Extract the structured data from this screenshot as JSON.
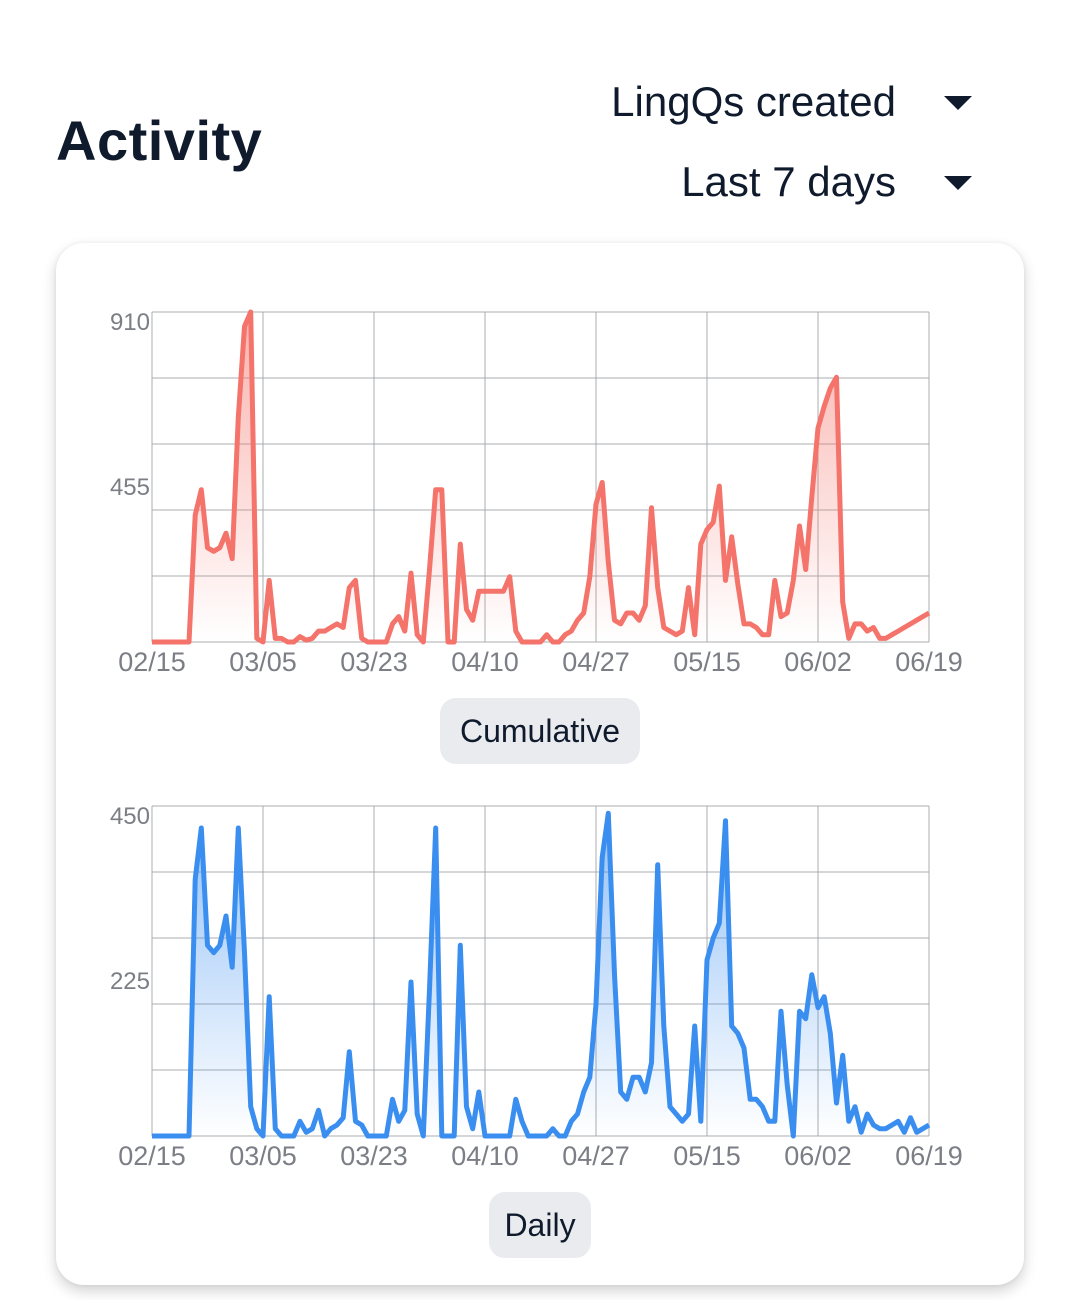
{
  "header": {
    "title": "Activity",
    "metric_dropdown": "LingQs created",
    "range_dropdown": "Last 7 days"
  },
  "buttons": {
    "cumulative": "Cumulative",
    "daily": "Daily"
  },
  "colors": {
    "cumulative_line": "#f4736a",
    "daily_line": "#3a8ef0",
    "grid": "#a9acb0"
  },
  "chart_data": [
    {
      "type": "area",
      "name": "cumulative-chart",
      "title": "",
      "x_tick_labels": [
        "02/15",
        "03/05",
        "03/23",
        "04/10",
        "04/27",
        "05/15",
        "06/02",
        "06/19"
      ],
      "y_tick_labels": [
        "910",
        "455"
      ],
      "ylim": [
        0,
        910
      ],
      "grid": true,
      "values": [
        0,
        0,
        0,
        0,
        0,
        0,
        0,
        350,
        420,
        260,
        250,
        260,
        300,
        230,
        620,
        870,
        910,
        10,
        0,
        170,
        10,
        10,
        0,
        0,
        15,
        5,
        10,
        30,
        30,
        40,
        50,
        40,
        150,
        170,
        10,
        0,
        0,
        0,
        0,
        50,
        70,
        30,
        190,
        20,
        0,
        200,
        420,
        420,
        0,
        0,
        270,
        90,
        60,
        140,
        140,
        140,
        140,
        140,
        180,
        30,
        0,
        0,
        0,
        0,
        20,
        0,
        0,
        20,
        30,
        60,
        80,
        180,
        380,
        440,
        220,
        60,
        50,
        80,
        80,
        60,
        100,
        370,
        150,
        40,
        30,
        20,
        30,
        150,
        20,
        270,
        310,
        330,
        430,
        170,
        290,
        160,
        50,
        50,
        40,
        20,
        20,
        170,
        70,
        80,
        170,
        320,
        200,
        400,
        590,
        650,
        700,
        730,
        110,
        10,
        50,
        50,
        30,
        40,
        10,
        10,
        20,
        30,
        40,
        50,
        60,
        70,
        80
      ]
    },
    {
      "type": "area",
      "name": "daily-chart",
      "title": "",
      "x_tick_labels": [
        "02/15",
        "03/05",
        "03/23",
        "04/10",
        "04/27",
        "05/15",
        "06/02",
        "06/19"
      ],
      "y_tick_labels": [
        "450",
        "225"
      ],
      "ylim": [
        0,
        450
      ],
      "grid": true,
      "values": [
        0,
        0,
        0,
        0,
        0,
        0,
        0,
        350,
        420,
        260,
        250,
        260,
        300,
        230,
        420,
        250,
        40,
        10,
        0,
        190,
        10,
        0,
        0,
        0,
        20,
        5,
        10,
        35,
        0,
        10,
        15,
        25,
        115,
        20,
        15,
        0,
        0,
        0,
        0,
        50,
        20,
        35,
        210,
        30,
        0,
        200,
        420,
        0,
        0,
        0,
        260,
        40,
        10,
        60,
        0,
        0,
        0,
        0,
        0,
        50,
        20,
        0,
        0,
        0,
        0,
        10,
        0,
        0,
        20,
        30,
        60,
        80,
        180,
        380,
        440,
        220,
        60,
        50,
        80,
        80,
        60,
        100,
        370,
        150,
        40,
        30,
        20,
        30,
        150,
        20,
        240,
        270,
        290,
        430,
        150,
        140,
        120,
        50,
        50,
        40,
        20,
        20,
        170,
        70,
        0,
        170,
        160,
        220,
        175,
        190,
        140,
        45,
        110,
        20,
        40,
        5,
        30,
        15,
        10,
        10,
        15,
        20,
        5,
        25,
        5,
        10,
        15
      ]
    }
  ]
}
